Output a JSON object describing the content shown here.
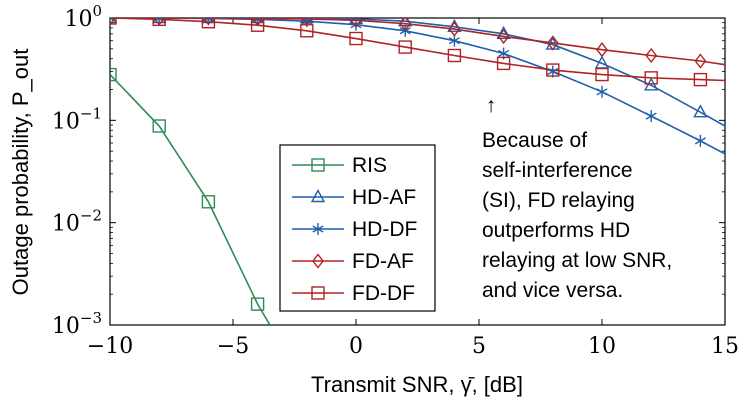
{
  "chart_data": {
    "type": "line",
    "xlabel": "Transmit SNR, γ̄, [dB]",
    "ylabel": "Outage probability, P_out",
    "xlim": [
      -10,
      15
    ],
    "ylim": [
      0.001,
      1
    ],
    "yscale": "log",
    "x_ticks": [
      -10,
      -5,
      0,
      5,
      10,
      15
    ],
    "y_ticks": [
      {
        "value": 0.001,
        "base": "10",
        "exp": "−3"
      },
      {
        "value": 0.01,
        "base": "10",
        "exp": "−2"
      },
      {
        "value": 0.1,
        "base": "10",
        "exp": "−1"
      },
      {
        "value": 1,
        "base": "10",
        "exp": "0"
      }
    ],
    "grid": false,
    "legend_position": "bottom-center",
    "series": [
      {
        "name": "RIS",
        "color": "#2e8b57",
        "marker": "square",
        "x": [
          -10,
          -8,
          -6,
          -4,
          -3.5
        ],
        "y": [
          0.28,
          0.088,
          0.016,
          0.0016,
          0.001
        ],
        "marker_x": [
          -10,
          -8,
          -6,
          -4
        ]
      },
      {
        "name": "HD-AF",
        "color": "#1f5fad",
        "marker": "triangle",
        "x": [
          -10,
          -8,
          -6,
          -4,
          -2,
          0,
          2,
          4,
          6,
          8,
          10,
          12,
          14,
          15
        ],
        "y": [
          1.0,
          1.0,
          1.0,
          1.0,
          1.0,
          0.98,
          0.93,
          0.82,
          0.7,
          0.55,
          0.36,
          0.22,
          0.12,
          0.088
        ]
      },
      {
        "name": "HD-DF",
        "color": "#1f5fad",
        "marker": "star",
        "x": [
          -10,
          -8,
          -6,
          -4,
          -2,
          0,
          2,
          4,
          6,
          8,
          10,
          12,
          14,
          15
        ],
        "y": [
          1.0,
          1.0,
          0.99,
          0.97,
          0.93,
          0.86,
          0.75,
          0.6,
          0.45,
          0.3,
          0.19,
          0.11,
          0.063,
          0.047
        ]
      },
      {
        "name": "FD-AF",
        "color": "#b22222",
        "marker": "diamond",
        "x": [
          -10,
          -8,
          -6,
          -4,
          -2,
          0,
          2,
          4,
          6,
          8,
          10,
          12,
          14,
          15
        ],
        "y": [
          1.0,
          1.0,
          1.0,
          0.99,
          0.98,
          0.95,
          0.88,
          0.78,
          0.66,
          0.57,
          0.49,
          0.43,
          0.38,
          0.35
        ]
      },
      {
        "name": "FD-DF",
        "color": "#b22222",
        "marker": "square",
        "x": [
          -10,
          -8,
          -6,
          -4,
          -2,
          0,
          2,
          4,
          6,
          8,
          10,
          12,
          14,
          15
        ],
        "y": [
          1.0,
          0.97,
          0.92,
          0.85,
          0.75,
          0.63,
          0.52,
          0.43,
          0.36,
          0.31,
          0.28,
          0.26,
          0.25,
          0.245
        ]
      }
    ],
    "annotation": {
      "lines": [
        "Because of",
        "self-interference",
        "(SI), FD relaying",
        "outperforms HD",
        "relaying at low SNR,",
        "and vice versa."
      ],
      "arrow": "↑"
    }
  }
}
